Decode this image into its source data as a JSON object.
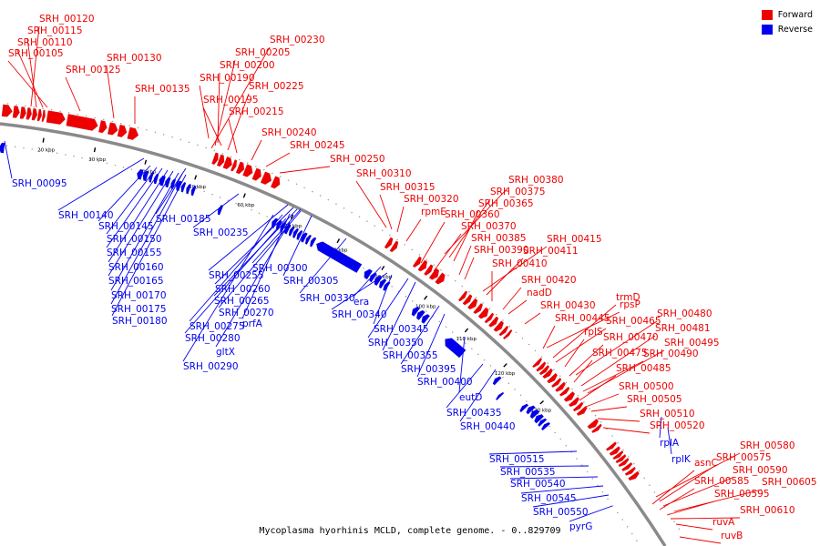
{
  "legend": {
    "forward_label": "Forward",
    "reverse_label": "Reverse",
    "forward_color": "#ee0000",
    "reverse_color": "#0000ee"
  },
  "caption": "Mycoplasma hyorhinis MCLD, complete genome. - 0..829709",
  "ticks": [
    "20 kbp",
    "30 kbp",
    "40 kbp",
    "50 kbp",
    "60 kbp",
    "70 kbp",
    "80 kbp",
    "90 kbp",
    "100 kbp",
    "110 kbp",
    "120 kbp",
    "130 kbp"
  ],
  "forward_labels": [
    "SRH_00120",
    "SRH_00115",
    "SRH_00110",
    "SRH_00105",
    "SRH_00125",
    "SRH_00130",
    "SRH_00135",
    "SRH_00230",
    "SRH_00205",
    "SRH_00200",
    "SRH_00190",
    "SRH_00195",
    "SRH_00225",
    "SRH_00215",
    "SRH_00240",
    "SRH_00245",
    "SRH_00250",
    "SRH_00310",
    "SRH_00315",
    "SRH_00320",
    "rpmE",
    "SRH_00380",
    "SRH_00375",
    "SRH_00365",
    "SRH_00360",
    "SRH_00370",
    "SRH_00385",
    "SRH_00390",
    "SRH_00415",
    "SRH_00411",
    "SRH_00410",
    "SRH_00420",
    "nadD",
    "SRH_00430",
    "rpsP",
    "trmD",
    "SRH_00445",
    "SRH_00465",
    "SRH_00480",
    "rplS",
    "SRH_00470",
    "SRH_00481",
    "SRH_00495",
    "SRH_00475",
    "SRH_00490",
    "SRH_00485",
    "SRH_00500",
    "SRH_00505",
    "SRH_00510",
    "SRH_00520",
    "SRH_00580",
    "SRH_00575",
    "asnC",
    "SRH_00590",
    "SRH_00585",
    "SRH_00605",
    "SRH_00595",
    "SRH_00610",
    "ruvA",
    "ruvB"
  ],
  "reverse_labels": [
    "SRH_00095",
    "SRH_00140",
    "SRH_00145",
    "SRH_00185",
    "SRH_00150",
    "SRH_00155",
    "SRH_00160",
    "SRH_00165",
    "SRH_00170",
    "SRH_00175",
    "SRH_00180",
    "SRH_00235",
    "SRH_00255",
    "SRH_00300",
    "SRH_00305",
    "SRH_00260",
    "SRH_00265",
    "SRH_00270",
    "SRH_00330",
    "prfA",
    "era",
    "SRH_00275",
    "SRH_00280",
    "SRH_00340",
    "gltX",
    "SRH_00345",
    "SRH_00290",
    "SRH_00350",
    "SRH_00355",
    "SRH_00395",
    "SRH_00400",
    "eutD",
    "SRH_00435",
    "SRH_00440",
    "rplA",
    "rplK",
    "SRH_00515",
    "SRH_00535",
    "SRH_00540",
    "SRH_00545",
    "SRH_00550",
    "pyrG"
  ]
}
